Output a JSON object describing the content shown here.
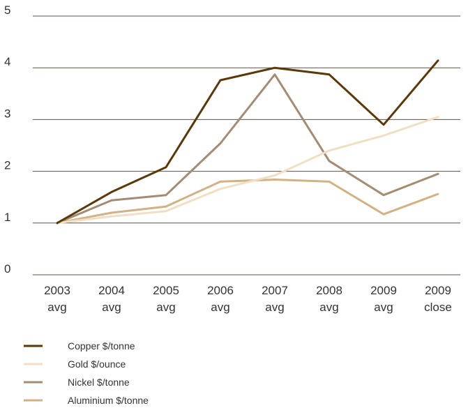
{
  "chart_data": {
    "type": "line",
    "title": "",
    "xlabel": "",
    "ylabel": "",
    "ylim": [
      0,
      5
    ],
    "yticks": [
      0,
      1,
      2,
      3,
      4,
      5
    ],
    "grid": true,
    "legend_placement": "bottom-left",
    "categories": [
      [
        "2003",
        "avg"
      ],
      [
        "2004",
        "avg"
      ],
      [
        "2005",
        "avg"
      ],
      [
        "2006",
        "avg"
      ],
      [
        "2007",
        "avg"
      ],
      [
        "2008",
        "avg"
      ],
      [
        "2009",
        "avg"
      ],
      [
        "2009",
        "close"
      ]
    ],
    "series": [
      {
        "name": "Copper $/tonne",
        "color": "#5a3808",
        "values": [
          1.0,
          1.6,
          2.08,
          3.76,
          4.0,
          3.87,
          2.9,
          4.14
        ]
      },
      {
        "name": "Gold $/ounce",
        "color": "#f1dfc4",
        "values": [
          1.0,
          1.13,
          1.23,
          1.66,
          1.92,
          2.4,
          2.69,
          3.05
        ]
      },
      {
        "name": "Nickel $/tonne",
        "color": "#a38c72",
        "values": [
          1.0,
          1.44,
          1.54,
          2.54,
          3.87,
          2.2,
          1.54,
          1.95
        ]
      },
      {
        "name": "Aluminium $/tonne",
        "color": "#d2b285",
        "values": [
          1.0,
          1.2,
          1.32,
          1.8,
          1.84,
          1.8,
          1.17,
          1.56
        ]
      }
    ]
  }
}
